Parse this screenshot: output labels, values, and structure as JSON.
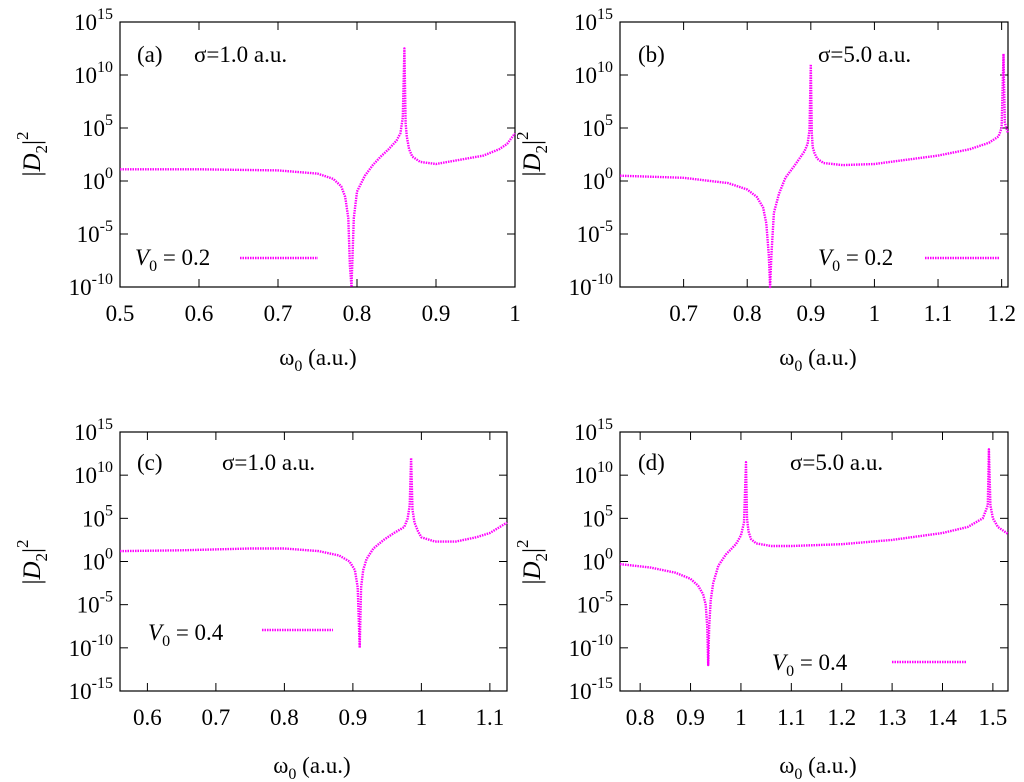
{
  "series_color": "#ff00ff",
  "chart_data": [
    {
      "type": "line",
      "panel_label": "(a)",
      "sigma_text": "σ=1.0 a.u.",
      "legend": {
        "var": "V",
        "sub": "0",
        "value_text": " = 0.2"
      },
      "xlabel": {
        "main": "ω",
        "sub": "0",
        "rest": " (a.u.)"
      },
      "ylabel": {
        "base": "|D",
        "sub": "2",
        "tail": "|",
        "sup": "2"
      },
      "y_scale": "log",
      "xlim": [
        0.5,
        1.0
      ],
      "ylim_exp": [
        -10,
        15
      ],
      "xticks": [
        0.5,
        0.6,
        0.7,
        0.8,
        0.9,
        1.0
      ],
      "xtick_labels": [
        "0.5",
        "0.6",
        "0.7",
        "0.8",
        "0.9",
        "1"
      ],
      "yticks_exp": [
        -10,
        -5,
        0,
        5,
        10,
        15
      ],
      "ytick_labels": [
        "-10",
        "-5",
        "0",
        "5",
        "10",
        "15"
      ],
      "ytick_base": "10",
      "series": [
        {
          "x": [
            0.5,
            0.6,
            0.7,
            0.75,
            0.77,
            0.78,
            0.785,
            0.789,
            0.791,
            0.793,
            0.796,
            0.8,
            0.81,
            0.82,
            0.83,
            0.84,
            0.85,
            0.855,
            0.858,
            0.86,
            0.8615,
            0.863,
            0.866,
            0.87,
            0.88,
            0.9,
            0.93,
            0.96,
            0.98,
            0.99,
            1.0
          ],
          "y_exp": [
            1.1,
            1.1,
            1.0,
            0.7,
            0.2,
            -0.5,
            -1.5,
            -3.5,
            -8,
            -10,
            -3.5,
            -1.0,
            0.5,
            1.5,
            2.3,
            3.0,
            3.8,
            4.5,
            6.0,
            12.5,
            5.5,
            4.2,
            3.0,
            2.3,
            1.8,
            1.6,
            2.0,
            2.4,
            3.0,
            3.5,
            4.5
          ]
        }
      ]
    },
    {
      "type": "line",
      "panel_label": "(b)",
      "sigma_text": "σ=5.0 a.u.",
      "legend": {
        "var": "V",
        "sub": "0",
        "value_text": " = 0.2"
      },
      "xlabel": {
        "main": "ω",
        "sub": "0",
        "rest": " (a.u.)"
      },
      "ylabel": {
        "base": "|D",
        "sub": "2",
        "tail": "|",
        "sup": "2"
      },
      "y_scale": "log",
      "xlim": [
        0.6,
        1.21
      ],
      "ylim_exp": [
        -10,
        15
      ],
      "xticks": [
        0.7,
        0.8,
        0.9,
        1.0,
        1.1,
        1.2
      ],
      "xtick_labels": [
        "0.7",
        "0.8",
        "0.9",
        "1",
        "1.1",
        "1.2"
      ],
      "yticks_exp": [
        -10,
        -5,
        0,
        5,
        10,
        15
      ],
      "ytick_labels": [
        "-10",
        "-5",
        "0",
        "5",
        "10",
        "15"
      ],
      "ytick_base": "10",
      "series": [
        {
          "x": [
            0.6,
            0.7,
            0.77,
            0.8,
            0.815,
            0.825,
            0.83,
            0.834,
            0.836,
            0.838,
            0.842,
            0.85,
            0.86,
            0.875,
            0.89,
            0.895,
            0.898,
            0.9,
            0.9015,
            0.903,
            0.906,
            0.91,
            0.92,
            0.95,
            1.0,
            1.05,
            1.1,
            1.15,
            1.18,
            1.195,
            1.2,
            1.203,
            1.205,
            1.21
          ],
          "y_exp": [
            0.5,
            0.3,
            -0.2,
            -0.8,
            -1.5,
            -2.5,
            -4,
            -7,
            -10,
            -7,
            -3,
            -1.2,
            0.3,
            1.5,
            2.8,
            3.5,
            4.8,
            11.0,
            4.5,
            3.2,
            2.6,
            2.1,
            1.7,
            1.5,
            1.6,
            2.0,
            2.4,
            3.0,
            3.6,
            4.2,
            5.0,
            12.0,
            5.5,
            4.5
          ]
        }
      ]
    },
    {
      "type": "line",
      "panel_label": "(c)",
      "sigma_text": "σ=1.0 a.u.",
      "legend": {
        "var": "V",
        "sub": "0",
        "value_text": " = 0.4"
      },
      "xlabel": {
        "main": "ω",
        "sub": "0",
        "rest": " (a.u.)"
      },
      "ylabel": {
        "base": "|D",
        "sub": "2",
        "tail": "|",
        "sup": "2"
      },
      "y_scale": "log",
      "xlim": [
        0.56,
        1.125
      ],
      "ylim_exp": [
        -15,
        15
      ],
      "xticks": [
        0.6,
        0.7,
        0.8,
        0.9,
        1.0,
        1.1
      ],
      "xtick_labels": [
        "0.6",
        "0.7",
        "0.8",
        "0.9",
        "1",
        "1.1"
      ],
      "yticks_exp": [
        -15,
        -10,
        -5,
        0,
        5,
        10,
        15
      ],
      "ytick_labels": [
        "-15",
        "-10",
        "-5",
        "0",
        "5",
        "10",
        "15"
      ],
      "ytick_base": "10",
      "series": [
        {
          "x": [
            0.56,
            0.65,
            0.75,
            0.8,
            0.85,
            0.88,
            0.895,
            0.903,
            0.907,
            0.91,
            0.912,
            0.915,
            0.92,
            0.93,
            0.945,
            0.96,
            0.975,
            0.98,
            0.983,
            0.985,
            0.987,
            0.99,
            0.995,
            1.0,
            1.02,
            1.05,
            1.08,
            1.1,
            1.125
          ],
          "y_exp": [
            1.2,
            1.3,
            1.5,
            1.5,
            1.2,
            0.7,
            0.0,
            -1.0,
            -3.0,
            -10,
            -3.0,
            -1.0,
            0.3,
            1.5,
            2.5,
            3.3,
            4.0,
            5.0,
            6.5,
            12.0,
            6.0,
            4.5,
            3.5,
            2.8,
            2.3,
            2.3,
            2.8,
            3.3,
            4.5
          ]
        }
      ]
    },
    {
      "type": "line",
      "panel_label": "(d)",
      "sigma_text": "σ=5.0 a.u.",
      "legend": {
        "var": "V",
        "sub": "0",
        "value_text": " = 0.4"
      },
      "xlabel": {
        "main": "ω",
        "sub": "0",
        "rest": " (a.u.)"
      },
      "ylabel": {
        "base": "|D",
        "sub": "2",
        "tail": "|",
        "sup": "2"
      },
      "y_scale": "log",
      "xlim": [
        0.76,
        1.53
      ],
      "ylim_exp": [
        -15,
        15
      ],
      "xticks": [
        0.8,
        0.9,
        1.0,
        1.1,
        1.2,
        1.3,
        1.4,
        1.5
      ],
      "xtick_labels": [
        "0.8",
        "0.9",
        "1",
        "1.1",
        "1.2",
        "1.3",
        "1.4",
        "1.5"
      ],
      "yticks_exp": [
        -15,
        -10,
        -5,
        0,
        5,
        10,
        15
      ],
      "ytick_labels": [
        "-15",
        "-10",
        "-5",
        "0",
        "5",
        "10",
        "15"
      ],
      "ytick_base": "10",
      "series": [
        {
          "x": [
            0.76,
            0.82,
            0.87,
            0.9,
            0.915,
            0.925,
            0.93,
            0.933,
            0.935,
            0.937,
            0.94,
            0.945,
            0.955,
            0.97,
            0.99,
            1.0,
            1.006,
            1.01,
            1.012,
            1.015,
            1.02,
            1.03,
            1.06,
            1.1,
            1.2,
            1.3,
            1.4,
            1.45,
            1.48,
            1.49,
            1.492,
            1.495,
            1.5,
            1.51,
            1.53
          ],
          "y_exp": [
            -0.3,
            -0.7,
            -1.3,
            -2.0,
            -2.8,
            -3.8,
            -5.0,
            -7.5,
            -12.0,
            -7.5,
            -4.5,
            -2.5,
            -0.5,
            0.8,
            2.0,
            3.0,
            4.5,
            11.5,
            5.0,
            3.5,
            2.6,
            2.1,
            1.8,
            1.8,
            2.0,
            2.5,
            3.3,
            4.0,
            5.0,
            6.5,
            13.0,
            6.5,
            5.0,
            4.0,
            3.2
          ]
        }
      ]
    }
  ]
}
